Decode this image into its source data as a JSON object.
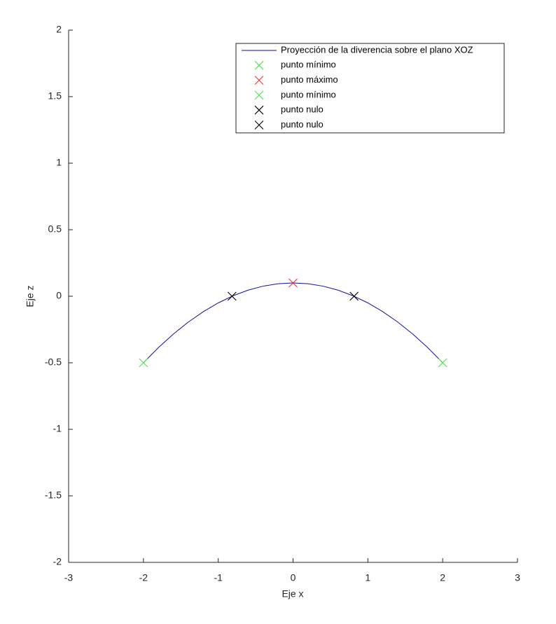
{
  "chart_data": {
    "type": "line",
    "xlabel": "Eje x",
    "ylabel": "Eje z",
    "xlim": [
      -3,
      3
    ],
    "ylim": [
      -2,
      2
    ],
    "xticks": [
      -3,
      -2,
      -1,
      0,
      1,
      2,
      3
    ],
    "yticks": [
      -2,
      -1.5,
      -1,
      -0.5,
      0,
      0.5,
      1,
      1.5,
      2
    ],
    "grid": false,
    "legend": "northeast",
    "series": [
      {
        "name": "Proyección de la diverencia sobre el plano XOZ",
        "color": "#1010a0",
        "marker": "none",
        "x": [
          -2,
          -1.8,
          -1.6,
          -1.4,
          -1.2,
          -1,
          -0.8,
          -0.6,
          -0.4,
          -0.2,
          0,
          0.2,
          0.4,
          0.6,
          0.8,
          1,
          1.2,
          1.4,
          1.6,
          1.8,
          2
        ],
        "values": [
          -0.5,
          -0.386,
          -0.284,
          -0.194,
          -0.116,
          -0.05,
          0.004,
          0.046,
          0.076,
          0.094,
          0.1,
          0.094,
          0.076,
          0.046,
          0.004,
          -0.05,
          -0.116,
          -0.194,
          -0.284,
          -0.386,
          -0.5
        ]
      },
      {
        "name": "punto mínimo",
        "color": "#4ee24e",
        "marker": "x",
        "x": [
          -2
        ],
        "values": [
          -0.5
        ]
      },
      {
        "name": "punto máximo",
        "color": "#ff3030",
        "marker": "x",
        "x": [
          0
        ],
        "values": [
          0.1
        ]
      },
      {
        "name": "punto mínimo",
        "color": "#4ee24e",
        "marker": "x",
        "x": [
          2
        ],
        "values": [
          -0.5
        ]
      },
      {
        "name": "punto nulo",
        "color": "#000000",
        "marker": "x",
        "x": [
          -0.816
        ],
        "values": [
          0
        ]
      },
      {
        "name": "punto nulo",
        "color": "#000000",
        "marker": "x",
        "x": [
          0.816
        ],
        "values": [
          0
        ]
      }
    ]
  }
}
